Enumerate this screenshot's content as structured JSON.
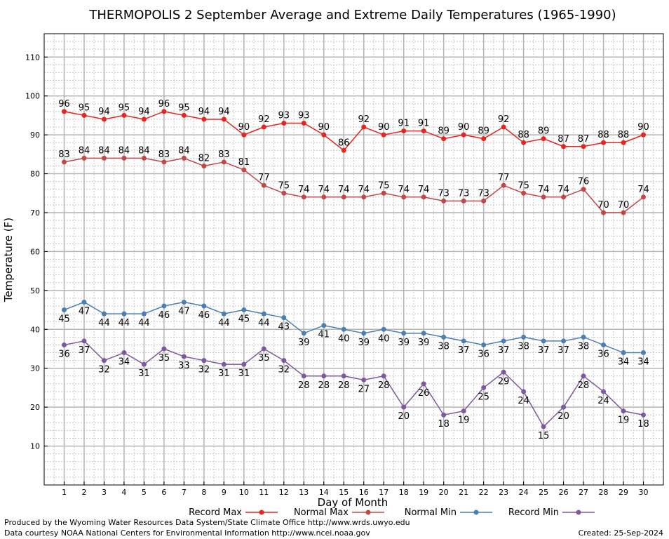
{
  "chart_data": {
    "type": "line",
    "title": "THERMOPOLIS 2 September Average and Extreme Daily Temperatures (1965-1990)",
    "xlabel": "Day of Month",
    "ylabel": "Temperature (F)",
    "x": [
      1,
      2,
      3,
      4,
      5,
      6,
      7,
      8,
      9,
      10,
      11,
      12,
      13,
      14,
      15,
      16,
      17,
      18,
      19,
      20,
      21,
      22,
      23,
      24,
      25,
      26,
      27,
      28,
      29,
      30
    ],
    "xlim": [
      0,
      31
    ],
    "ylim": [
      0,
      116
    ],
    "yticks": [
      10,
      20,
      30,
      40,
      50,
      60,
      70,
      80,
      90,
      100,
      110
    ],
    "grid": true,
    "legend_position": "bottom",
    "series": [
      {
        "name": "Record Max",
        "color": "#e8241f",
        "label_position": "above",
        "values": [
          96,
          95,
          94,
          95,
          94,
          96,
          95,
          94,
          94,
          90,
          92,
          93,
          93,
          90,
          86,
          92,
          90,
          91,
          91,
          89,
          90,
          89,
          92,
          88,
          89,
          87,
          87,
          88,
          88,
          90
        ]
      },
      {
        "name": "Normal Max",
        "color": "#c04848",
        "label_position": "above",
        "values": [
          83,
          84,
          84,
          84,
          84,
          83,
          84,
          82,
          83,
          81,
          77,
          75,
          74,
          74,
          74,
          74,
          75,
          74,
          74,
          73,
          73,
          73,
          77,
          75,
          74,
          74,
          76,
          70,
          70,
          74
        ]
      },
      {
        "name": "Normal Min",
        "color": "#4a7fb5",
        "label_position": "below",
        "values": [
          45,
          47,
          44,
          44,
          44,
          46,
          47,
          46,
          44,
          45,
          44,
          43,
          39,
          41,
          40,
          39,
          40,
          39,
          39,
          38,
          37,
          36,
          37,
          38,
          37,
          37,
          38,
          36,
          34,
          34
        ]
      },
      {
        "name": "Record Min",
        "color": "#7e58a0",
        "label_position": "below",
        "values": [
          36,
          37,
          32,
          34,
          31,
          35,
          33,
          32,
          31,
          31,
          35,
          32,
          28,
          28,
          28,
          27,
          28,
          20,
          26,
          18,
          19,
          25,
          29,
          24,
          15,
          20,
          28,
          24,
          19,
          18
        ]
      }
    ]
  },
  "footer": {
    "produced_by": "Produced by the Wyoming Water Resources Data System/State Climate Office http://www.wrds.uwyo.edu",
    "courtesy": "Data courtesy NOAA National Centers for Environmental Information http://www.ncei.noaa.gov",
    "created": "Created:  25-Sep-2024"
  }
}
